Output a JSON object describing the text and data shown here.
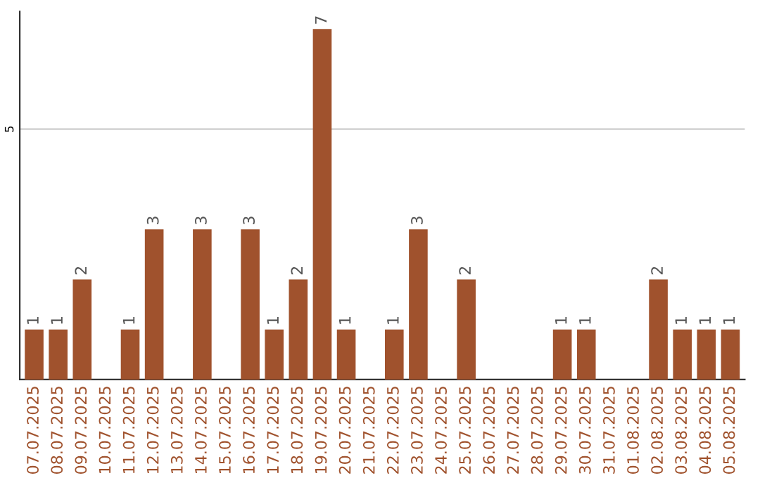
{
  "chart_data": {
    "type": "bar",
    "categories": [
      "07.07.2025",
      "08.07.2025",
      "09.07.2025",
      "10.07.2025",
      "11.07.2025",
      "12.07.2025",
      "13.07.2025",
      "14.07.2025",
      "15.07.2025",
      "16.07.2025",
      "17.07.2025",
      "18.07.2025",
      "19.07.2025",
      "20.07.2025",
      "21.07.2025",
      "22.07.2025",
      "23.07.2025",
      "24.07.2025",
      "25.07.2025",
      "26.07.2025",
      "27.07.2025",
      "28.07.2025",
      "29.07.2025",
      "30.07.2025",
      "31.07.2025",
      "01.08.2025",
      "02.08.2025",
      "03.08.2025",
      "04.08.2025",
      "05.08.2025"
    ],
    "values": [
      1,
      1,
      2,
      0,
      1,
      3,
      0,
      3,
      0,
      3,
      1,
      2,
      7,
      1,
      0,
      1,
      3,
      0,
      2,
      0,
      0,
      0,
      1,
      1,
      0,
      0,
      2,
      1,
      1,
      1
    ],
    "value_labels": [
      "1",
      "1",
      "2",
      null,
      "1",
      "3",
      null,
      "3",
      null,
      "3",
      "1",
      "2",
      "7",
      "1",
      null,
      "1",
      "3",
      null,
      "2",
      null,
      null,
      null,
      "1",
      "1",
      null,
      null,
      "2",
      "1",
      "1",
      "1"
    ],
    "color": "#a0522d",
    "ylim": [
      0,
      7.35
    ],
    "yticks": [
      5
    ],
    "grid": "y"
  }
}
